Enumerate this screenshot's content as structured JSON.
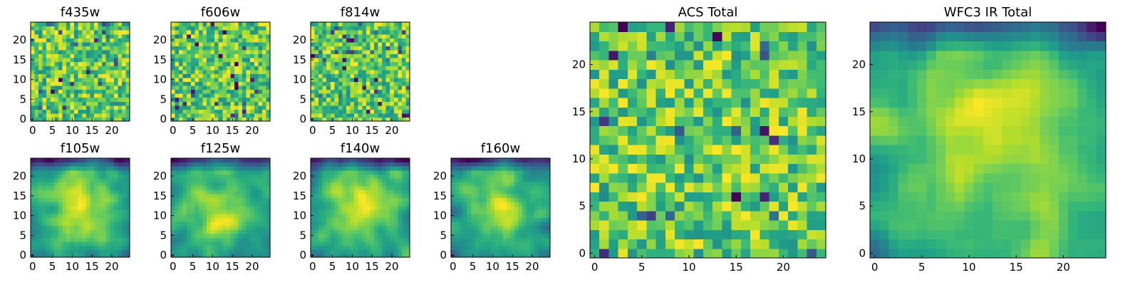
{
  "chart_data": [
    {
      "type": "heatmap",
      "title": "f435w",
      "grid": [
        25,
        25
      ],
      "xlim": [
        0,
        25
      ],
      "ylim": [
        0,
        25
      ],
      "xticks": [
        0,
        5,
        10,
        15,
        20
      ],
      "yticks": [
        0,
        5,
        10,
        15,
        20
      ],
      "colormap": "viridis",
      "pattern": "noise",
      "seed": 11
    },
    {
      "type": "heatmap",
      "title": "f606w",
      "grid": [
        25,
        25
      ],
      "xlim": [
        0,
        25
      ],
      "ylim": [
        0,
        25
      ],
      "xticks": [
        0,
        5,
        10,
        15,
        20
      ],
      "yticks": [
        0,
        5,
        10,
        15,
        20
      ],
      "colormap": "viridis",
      "pattern": "noise",
      "seed": 22
    },
    {
      "type": "heatmap",
      "title": "f814w",
      "grid": [
        25,
        25
      ],
      "xlim": [
        0,
        25
      ],
      "ylim": [
        0,
        25
      ],
      "xticks": [
        0,
        5,
        10,
        15,
        20
      ],
      "yticks": [
        0,
        5,
        10,
        15,
        20
      ],
      "colormap": "viridis",
      "pattern": "noise",
      "seed": 33
    },
    {
      "type": "heatmap",
      "title": "f105w",
      "grid": [
        25,
        25
      ],
      "xlim": [
        0,
        25
      ],
      "ylim": [
        0,
        25
      ],
      "xticks": [
        0,
        5,
        10,
        15,
        20
      ],
      "yticks": [
        0,
        5,
        10,
        15,
        20
      ],
      "colormap": "viridis",
      "pattern": "smooth",
      "seed": 44
    },
    {
      "type": "heatmap",
      "title": "f125w",
      "grid": [
        25,
        25
      ],
      "xlim": [
        0,
        25
      ],
      "ylim": [
        0,
        25
      ],
      "xticks": [
        0,
        5,
        10,
        15,
        20
      ],
      "yticks": [
        0,
        5,
        10,
        15,
        20
      ],
      "colormap": "viridis",
      "pattern": "smooth",
      "seed": 55
    },
    {
      "type": "heatmap",
      "title": "f140w",
      "grid": [
        25,
        25
      ],
      "xlim": [
        0,
        25
      ],
      "ylim": [
        0,
        25
      ],
      "xticks": [
        0,
        5,
        10,
        15,
        20
      ],
      "yticks": [
        0,
        5,
        10,
        15,
        20
      ],
      "colormap": "viridis",
      "pattern": "smooth",
      "seed": 66
    },
    {
      "type": "heatmap",
      "title": "f160w",
      "grid": [
        25,
        25
      ],
      "xlim": [
        0,
        25
      ],
      "ylim": [
        0,
        25
      ],
      "xticks": [
        0,
        5,
        10,
        15,
        20
      ],
      "yticks": [
        0,
        5,
        10,
        15,
        20
      ],
      "colormap": "viridis",
      "pattern": "smooth",
      "seed": 77
    },
    {
      "type": "heatmap",
      "title": "ACS Total",
      "grid": [
        25,
        25
      ],
      "xlim": [
        0,
        25
      ],
      "ylim": [
        0,
        25
      ],
      "xticks": [
        0,
        5,
        10,
        15,
        20
      ],
      "yticks": [
        0,
        5,
        10,
        15,
        20
      ],
      "colormap": "viridis",
      "pattern": "noise",
      "seed": 88
    },
    {
      "type": "heatmap",
      "title": "WFC3 IR Total",
      "grid": [
        25,
        25
      ],
      "xlim": [
        0,
        25
      ],
      "ylim": [
        0,
        25
      ],
      "xticks": [
        0,
        5,
        10,
        15,
        20
      ],
      "yticks": [
        0,
        5,
        10,
        15,
        20
      ],
      "colormap": "viridis",
      "pattern": "smooth",
      "seed": 99
    }
  ],
  "colors": {
    "viridis": [
      "#440154",
      "#482878",
      "#3e4989",
      "#31688e",
      "#26828e",
      "#1f9e89",
      "#35b779",
      "#6ece58",
      "#b5de2b",
      "#fde725"
    ],
    "background": "#ffffff",
    "axis": "#000000"
  }
}
